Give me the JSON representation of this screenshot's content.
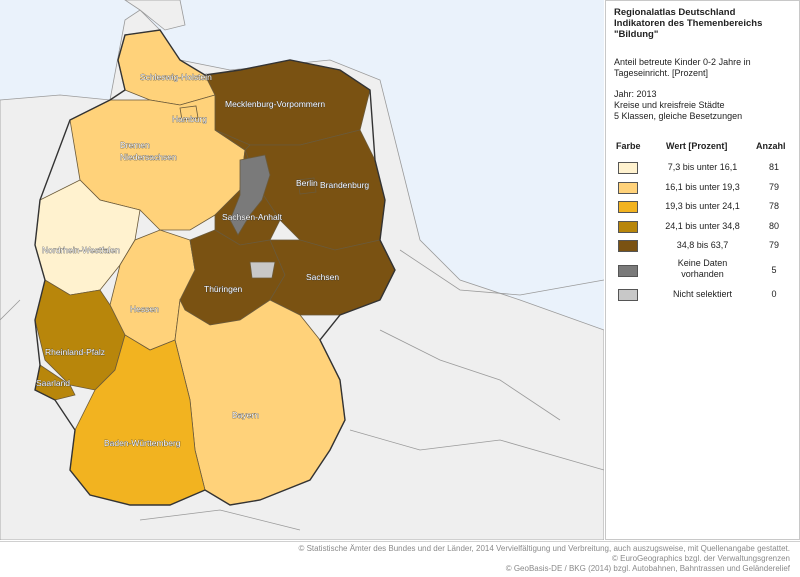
{
  "colors": {
    "sea": "#eaf2fb",
    "neighbor": "#efefef",
    "class1": "#fff2cf",
    "class2": "#ffd27a",
    "class3": "#f2b320",
    "class4": "#b8860b",
    "class5": "#7a5212",
    "no_data": "#7a7a7a",
    "not_selected": "#c8c8c8"
  },
  "legend": {
    "title_lines": [
      "Regionalatlas Deutschland",
      "Indikatoren des Themenbereichs",
      "\"Bildung\""
    ],
    "indicator_lines": [
      "Anteil betreute Kinder 0-2 Jahre in",
      "Tageseinricht. [Prozent]"
    ],
    "meta_lines": [
      "Jahr: 2013",
      "Kreise und kreisfreie Städte",
      "5 Klassen, gleiche Besetzungen"
    ],
    "col_color": "Farbe",
    "col_value": "Wert [Prozent]",
    "col_count": "Anzahl",
    "rows": [
      {
        "label": "7,3 bis unter 16,1",
        "count": "81",
        "color": "#fff2cf"
      },
      {
        "label": "16,1 bis unter 19,3",
        "count": "79",
        "color": "#ffd27a"
      },
      {
        "label": "19,3 bis unter 24,1",
        "count": "78",
        "color": "#f2b320"
      },
      {
        "label": "24,1 bis unter 34,8",
        "count": "80",
        "color": "#b8860b"
      },
      {
        "label": "34,8 bis 63,7",
        "count": "79",
        "color": "#7a5212"
      }
    ],
    "no_data_line1": "Keine Daten",
    "no_data_line2": "vorhanden",
    "no_data_count": "5",
    "not_selected_label": "Nicht selektiert",
    "not_selected_count": "0"
  },
  "states": {
    "sh": "Schleswig-Holstein",
    "hh": "Hamburg",
    "mv": "Mecklenburg-Vorpommern",
    "hb": "Bremen",
    "ni": "Niedersachsen",
    "be": "Berlin",
    "bb": "Brandenburg",
    "st": "Sachsen-Anhalt",
    "nw": "Nordrhein-Westfalen",
    "sn": "Sachsen",
    "th": "Thüringen",
    "he": "Hessen",
    "rp": "Rheinland-Pfalz",
    "sl": "Saarland",
    "by": "Bayern",
    "bw": "Baden-Württemberg"
  },
  "footer": {
    "line1": "© Statistische Ämter des Bundes und der Länder, 2014  Vervielfältigung und Verbreitung, auch auszugsweise,  mit Quellenangabe gestattet.",
    "line2": "© EuroGeographics bzgl. der Verwaltungsgrenzen",
    "line3": "© GeoBasis-DE / BKG (2014) bzgl. Autobahnen, Bahntrassen und Geländerelief"
  }
}
